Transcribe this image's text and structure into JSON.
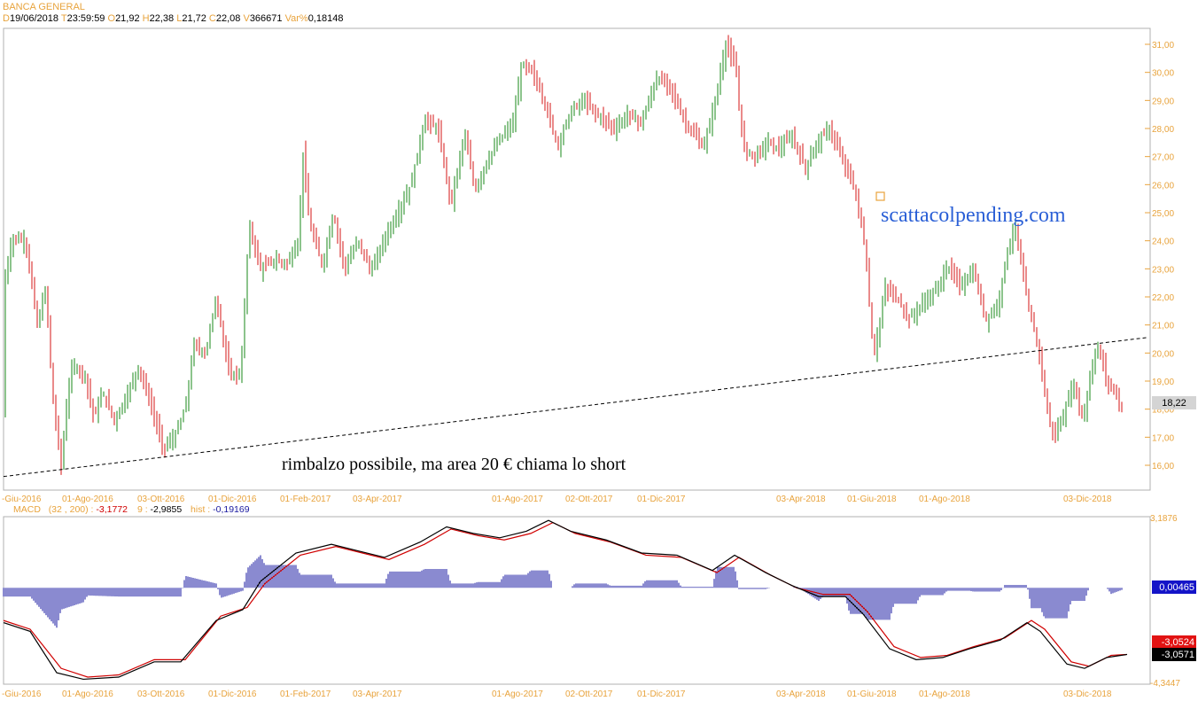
{
  "chart_data": [
    {
      "type": "candlestick",
      "title": "BANCA GENERAL",
      "info": {
        "date_label": "D",
        "date": "19/06/2018",
        "time_label": "T",
        "time": "23:59:59",
        "open_label": "O",
        "open": "21,92",
        "high_label": "H",
        "high": "22,38",
        "low_label": "L",
        "low": "21,72",
        "close_label": "C",
        "close": "22,08",
        "volume_label": "V",
        "volume": "366671",
        "var_label": "Var%",
        "var": "0,18148"
      },
      "y_ticks": [
        "16,00",
        "17,00",
        "18,00",
        "19,00",
        "20,00",
        "21,00",
        "22,00",
        "23,00",
        "24,00",
        "25,00",
        "26,00",
        "27,00",
        "28,00",
        "29,00",
        "30,00",
        "31,00"
      ],
      "ylim": [
        15.5,
        31.2
      ],
      "last_price_label": "18,22",
      "last_price": 18.22,
      "x_ticks": [
        "-Giu-2016",
        "01-Ago-2016",
        "03-Ott-2016",
        "01-Dic-2016",
        "01-Feb-2017",
        "03-Apr-2017",
        "01-Ago-2017",
        "02-Ott-2017",
        "01-Dic-2017",
        "03-Apr-2018",
        "01-Giu-2018",
        "01-Ago-2018",
        "03-Dic-2018"
      ],
      "price_path": [
        [
          0,
          22.4
        ],
        [
          10,
          24.1
        ],
        [
          25,
          24.0
        ],
        [
          38,
          21.0
        ],
        [
          48,
          22.3
        ],
        [
          55,
          18.5
        ],
        [
          65,
          16.0
        ],
        [
          72,
          18.4
        ],
        [
          78,
          19.6
        ],
        [
          92,
          19.2
        ],
        [
          102,
          17.7
        ],
        [
          112,
          18.6
        ],
        [
          125,
          17.6
        ],
        [
          138,
          18.4
        ],
        [
          152,
          19.5
        ],
        [
          165,
          18.3
        ],
        [
          180,
          16.6
        ],
        [
          193,
          17.0
        ],
        [
          205,
          18.0
        ],
        [
          215,
          20.3
        ],
        [
          228,
          20.0
        ],
        [
          240,
          22.0
        ],
        [
          255,
          19.2
        ],
        [
          268,
          19.3
        ],
        [
          277,
          24.6
        ],
        [
          290,
          23.0
        ],
        [
          305,
          23.3
        ],
        [
          320,
          23.2
        ],
        [
          333,
          24.0
        ],
        [
          338,
          27.1
        ],
        [
          345,
          24.6
        ],
        [
          360,
          23.1
        ],
        [
          372,
          25.0
        ],
        [
          385,
          23.0
        ],
        [
          400,
          24.0
        ],
        [
          415,
          22.9
        ],
        [
          430,
          24.1
        ],
        [
          445,
          25.0
        ],
        [
          460,
          26.0
        ],
        [
          475,
          28.3
        ],
        [
          490,
          28.0
        ],
        [
          505,
          25.3
        ],
        [
          520,
          27.8
        ],
        [
          532,
          25.8
        ],
        [
          545,
          26.8
        ],
        [
          560,
          27.6
        ],
        [
          575,
          28.2
        ],
        [
          585,
          30.3
        ],
        [
          597,
          30.0
        ],
        [
          610,
          29.0
        ],
        [
          625,
          27.4
        ],
        [
          640,
          28.6
        ],
        [
          655,
          29.0
        ],
        [
          670,
          28.5
        ],
        [
          690,
          28.0
        ],
        [
          705,
          28.5
        ],
        [
          720,
          28.2
        ],
        [
          737,
          29.8
        ],
        [
          752,
          29.5
        ],
        [
          768,
          28.3
        ],
        [
          790,
          27.3
        ],
        [
          802,
          28.8
        ],
        [
          815,
          31.0
        ],
        [
          826,
          30.2
        ],
        [
          835,
          27.3
        ],
        [
          848,
          27.0
        ],
        [
          862,
          27.5
        ],
        [
          875,
          27.3
        ],
        [
          890,
          27.7
        ],
        [
          905,
          26.6
        ],
        [
          918,
          27.5
        ],
        [
          932,
          28.0
        ],
        [
          945,
          27.0
        ],
        [
          958,
          26.1
        ],
        [
          967,
          24.8
        ],
        [
          972,
          23.8
        ],
        [
          982,
          19.8
        ],
        [
          995,
          22.3
        ],
        [
          1008,
          22.0
        ],
        [
          1022,
          21.2
        ],
        [
          1038,
          21.8
        ],
        [
          1052,
          22.2
        ],
        [
          1065,
          23.1
        ],
        [
          1080,
          22.4
        ],
        [
          1095,
          22.9
        ],
        [
          1108,
          21.2
        ],
        [
          1122,
          21.7
        ],
        [
          1133,
          23.7
        ],
        [
          1142,
          24.5
        ],
        [
          1150,
          22.8
        ],
        [
          1158,
          21.4
        ],
        [
          1168,
          20.2
        ],
        [
          1178,
          17.9
        ],
        [
          1186,
          17.0
        ],
        [
          1196,
          17.8
        ],
        [
          1208,
          18.9
        ],
        [
          1218,
          17.6
        ],
        [
          1230,
          19.8
        ],
        [
          1236,
          20.2
        ],
        [
          1245,
          19.0
        ],
        [
          1255,
          18.6
        ],
        [
          1264,
          17.8
        ]
      ],
      "trendline": {
        "from": [
          0,
          15.6
        ],
        "to": [
          1290,
          20.55
        ]
      },
      "annotations": [
        "rimbalzo possibile, ma area 20 € chiama lo short",
        "scattacolpending.com"
      ]
    },
    {
      "type": "line",
      "title": "MACD",
      "params": "(32 , 200) :",
      "macd_value": "-3,1772",
      "signal_label": "9 :",
      "signal_value": "-2,9855",
      "hist_label": "hist :",
      "hist_value": "-0,19169",
      "ylim": [
        -4.3447,
        3.1876
      ],
      "y_top_label": "3,1876",
      "y_bottom_label": "-4,3447",
      "zero_label": "0,00465",
      "red_label": "-3,0524",
      "black_label": "-3,0571",
      "macd_path": [
        [
          0,
          -1.6
        ],
        [
          30,
          -2.0
        ],
        [
          60,
          -3.9
        ],
        [
          90,
          -4.2
        ],
        [
          130,
          -4.1
        ],
        [
          170,
          -3.4
        ],
        [
          200,
          -3.4
        ],
        [
          240,
          -1.5
        ],
        [
          270,
          -1.0
        ],
        [
          290,
          0.3
        ],
        [
          330,
          1.6
        ],
        [
          370,
          2.0
        ],
        [
          400,
          1.7
        ],
        [
          430,
          1.4
        ],
        [
          470,
          2.1
        ],
        [
          500,
          2.8
        ],
        [
          530,
          2.5
        ],
        [
          560,
          2.3
        ],
        [
          590,
          2.6
        ],
        [
          615,
          3.1
        ],
        [
          640,
          2.6
        ],
        [
          680,
          2.2
        ],
        [
          720,
          1.6
        ],
        [
          760,
          1.5
        ],
        [
          800,
          0.8
        ],
        [
          825,
          1.5
        ],
        [
          860,
          0.7
        ],
        [
          890,
          0.1
        ],
        [
          920,
          -0.4
        ],
        [
          950,
          -0.4
        ],
        [
          970,
          -1.2
        ],
        [
          1000,
          -2.8
        ],
        [
          1030,
          -3.3
        ],
        [
          1060,
          -3.2
        ],
        [
          1090,
          -2.8
        ],
        [
          1125,
          -2.4
        ],
        [
          1155,
          -1.6
        ],
        [
          1170,
          -2.0
        ],
        [
          1200,
          -3.5
        ],
        [
          1220,
          -3.7
        ],
        [
          1245,
          -3.2
        ],
        [
          1268,
          -3.06
        ]
      ],
      "signal_path": [
        [
          0,
          -1.5
        ],
        [
          30,
          -1.9
        ],
        [
          65,
          -3.7
        ],
        [
          95,
          -4.1
        ],
        [
          130,
          -4.0
        ],
        [
          170,
          -3.3
        ],
        [
          205,
          -3.3
        ],
        [
          245,
          -1.3
        ],
        [
          275,
          -0.9
        ],
        [
          295,
          0.2
        ],
        [
          335,
          1.5
        ],
        [
          375,
          1.9
        ],
        [
          405,
          1.6
        ],
        [
          435,
          1.3
        ],
        [
          475,
          2.0
        ],
        [
          505,
          2.7
        ],
        [
          535,
          2.4
        ],
        [
          565,
          2.2
        ],
        [
          595,
          2.5
        ],
        [
          620,
          3.0
        ],
        [
          645,
          2.5
        ],
        [
          685,
          2.1
        ],
        [
          725,
          1.5
        ],
        [
          765,
          1.4
        ],
        [
          805,
          0.7
        ],
        [
          830,
          1.4
        ],
        [
          865,
          0.6
        ],
        [
          895,
          0.0
        ],
        [
          925,
          -0.3
        ],
        [
          955,
          -0.3
        ],
        [
          975,
          -1.1
        ],
        [
          1005,
          -2.7
        ],
        [
          1035,
          -3.2
        ],
        [
          1065,
          -3.1
        ],
        [
          1095,
          -2.7
        ],
        [
          1130,
          -2.3
        ],
        [
          1160,
          -1.5
        ],
        [
          1175,
          -1.9
        ],
        [
          1205,
          -3.4
        ],
        [
          1225,
          -3.6
        ],
        [
          1250,
          -3.1
        ],
        [
          1268,
          -3.06
        ]
      ]
    }
  ]
}
